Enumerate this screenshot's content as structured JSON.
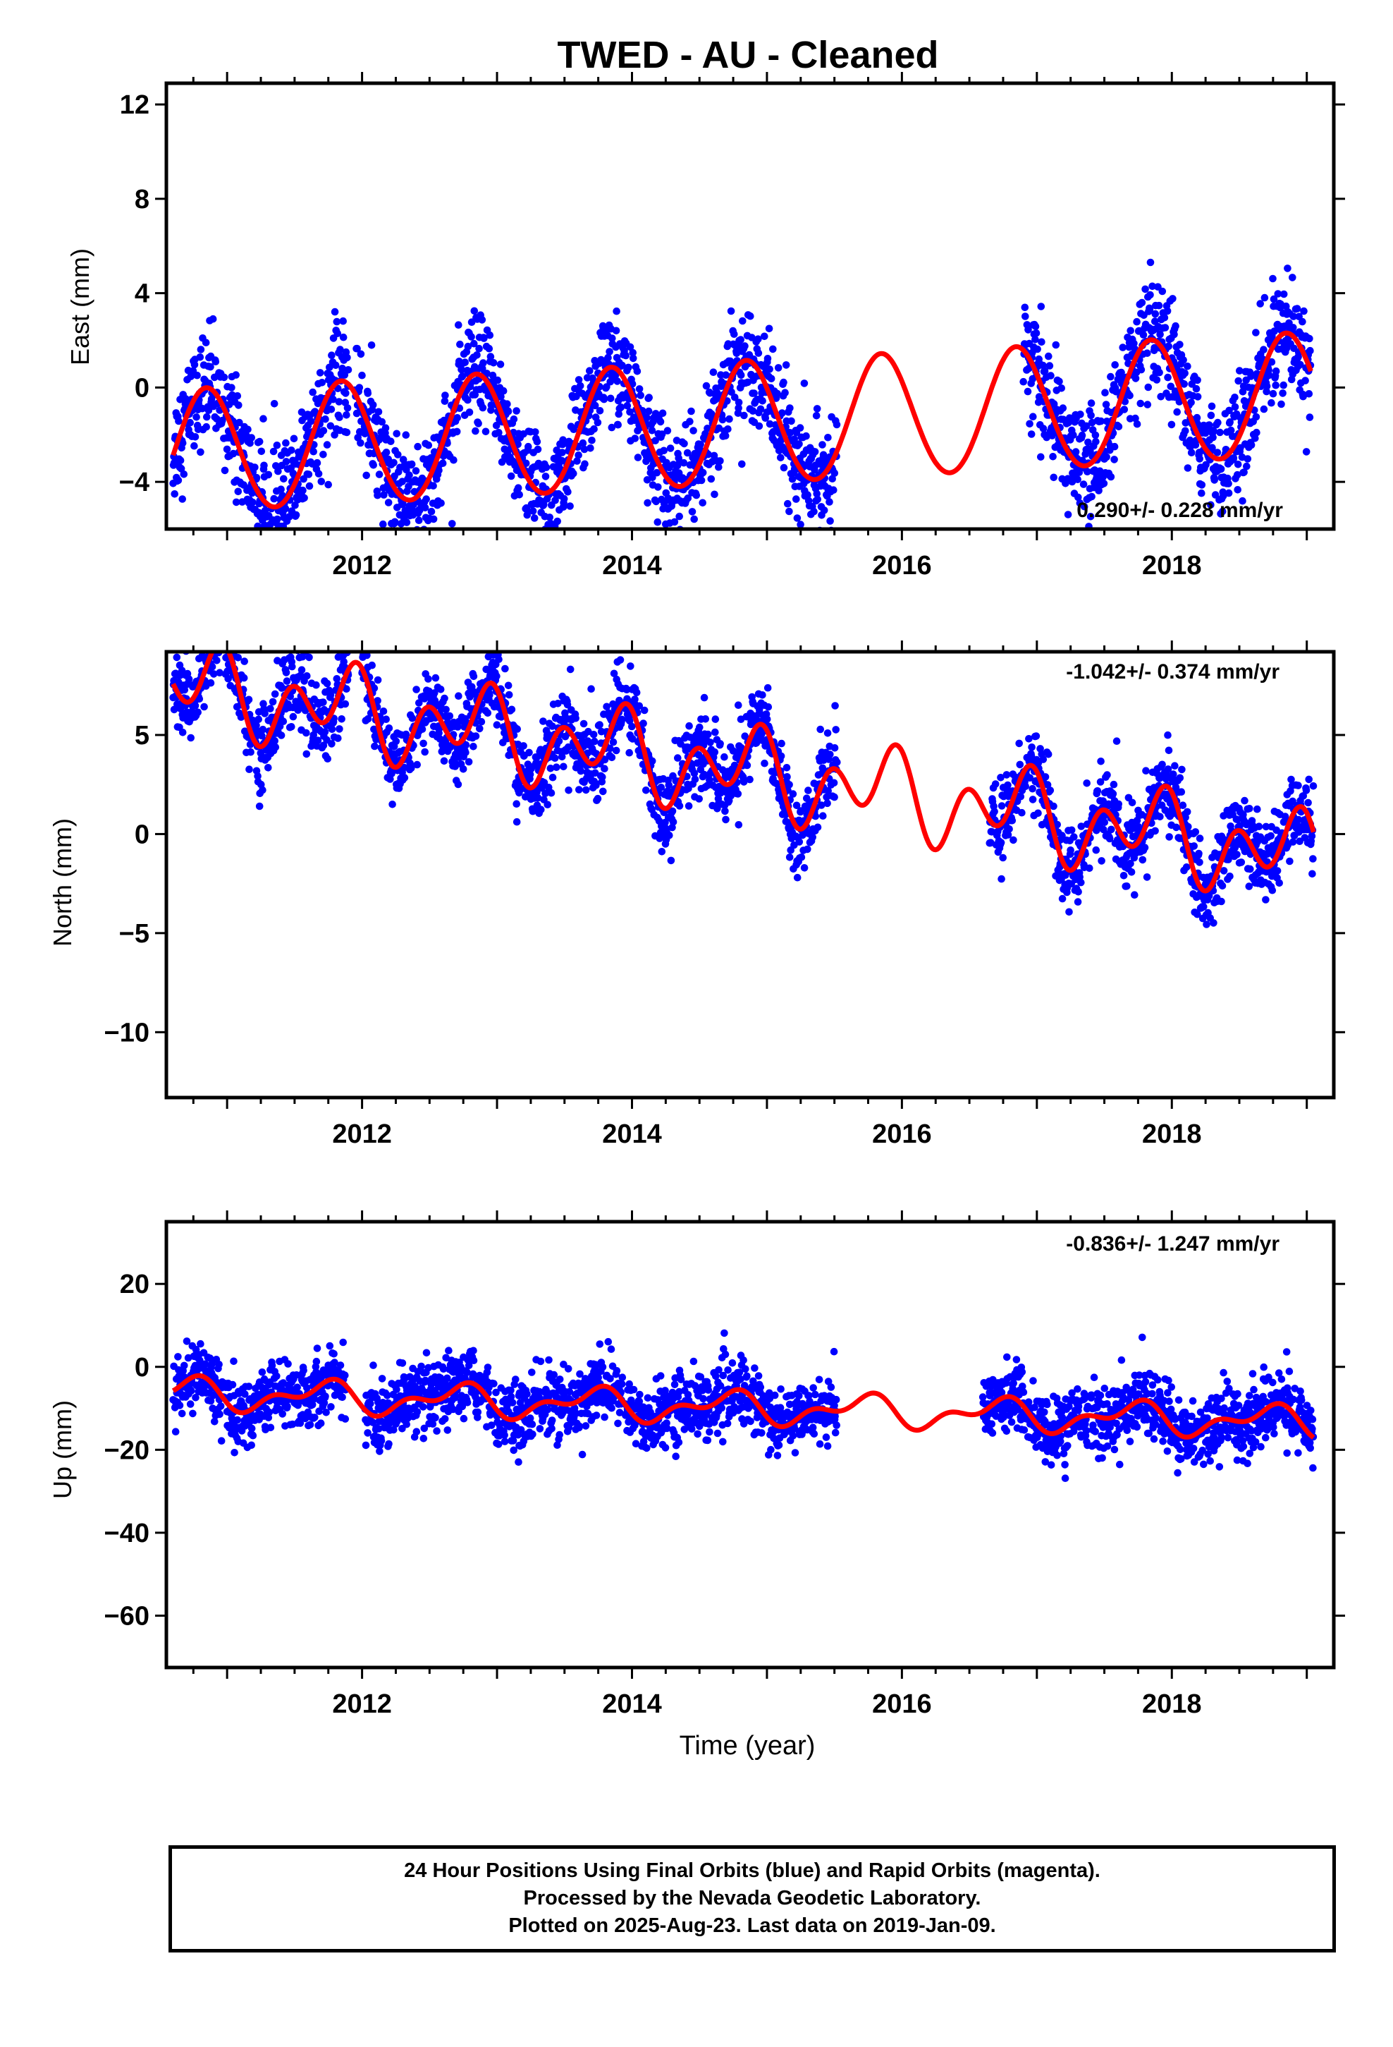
{
  "chart_data": [
    {
      "type": "scatter",
      "title": "TWED  - AU - Cleaned",
      "ylabel": "East (mm)",
      "xlabel": "",
      "xlim": [
        2010.55,
        2019.2
      ],
      "ylim": [
        -6.0,
        12.9
      ],
      "xticks": [
        2012,
        2014,
        2016,
        2018
      ],
      "yticks": [
        -4,
        0,
        4,
        8,
        12
      ],
      "annotation": "0.290+/- 0.228 mm/yr",
      "data_segments": [
        [
          2010.6,
          2011.9
        ],
        [
          2011.95,
          2015.52
        ],
        [
          2016.9,
          2019.03
        ]
      ],
      "model": {
        "mean": -1.5,
        "trend": 0.29,
        "annual_amp": 2.6,
        "annual_phase": 0.6,
        "semi_amp": 0.1,
        "semi_phase": 0.7
      },
      "noise": 1.15,
      "series": [
        {
          "name": "Final Orbits",
          "color": "#0000ff"
        },
        {
          "name": "Model",
          "color": "#ff0000"
        }
      ]
    },
    {
      "type": "scatter",
      "title": "",
      "ylabel": "North (mm)",
      "xlabel": "",
      "xlim": [
        2010.55,
        2019.2
      ],
      "ylim": [
        -13.3,
        9.2
      ],
      "xticks": [
        2012,
        2014,
        2016,
        2018
      ],
      "yticks": [
        -10,
        -5,
        0,
        5
      ],
      "annotation": "-1.042+/- 0.374 mm/yr",
      "data_segments": [
        [
          2010.6,
          2011.9
        ],
        [
          2012.0,
          2013.93
        ],
        [
          2013.95,
          2015.52
        ],
        [
          2016.65,
          2019.05
        ]
      ],
      "model": {
        "mean": 3.0,
        "trend": -1.04,
        "annual_amp": 1.2,
        "annual_phase": 0.6,
        "semi_amp": 1.6,
        "semi_phase": 0.35
      },
      "noise": 1.0,
      "series": [
        {
          "name": "Final Orbits",
          "color": "#0000ff"
        },
        {
          "name": "Model",
          "color": "#ff0000"
        }
      ]
    },
    {
      "type": "scatter",
      "title": "",
      "ylabel": "Up (mm)",
      "xlabel": "Time (year)",
      "xlim": [
        2010.55,
        2019.2
      ],
      "ylim": [
        -72.5,
        35.0
      ],
      "xticks": [
        2012,
        2014,
        2016,
        2018
      ],
      "yticks": [
        -60,
        -40,
        -20,
        0,
        20
      ],
      "annotation": "-0.836+/- 1.247 mm/yr",
      "data_segments": [
        [
          2010.6,
          2011.88
        ],
        [
          2012.02,
          2013.93
        ],
        [
          2013.95,
          2015.52
        ],
        [
          2016.6,
          2017.38
        ],
        [
          2017.4,
          2019.05
        ]
      ],
      "model": {
        "mean": -10.0,
        "trend": -0.84,
        "annual_amp": 3.0,
        "annual_phase": 0.45,
        "semi_amp": 2.0,
        "semi_phase": 0.2
      },
      "noise": 4.0,
      "series": [
        {
          "name": "Final Orbits",
          "color": "#0000ff"
        },
        {
          "name": "Model",
          "color": "#ff0000"
        }
      ]
    }
  ],
  "footer": {
    "line1": "24 Hour Positions Using Final Orbits (blue) and Rapid Orbits (magenta).",
    "line2": "Processed by the Nevada Geodetic Laboratory.",
    "line3": "Plotted on 2025-Aug-23. Last data on 2019-Jan-09."
  }
}
